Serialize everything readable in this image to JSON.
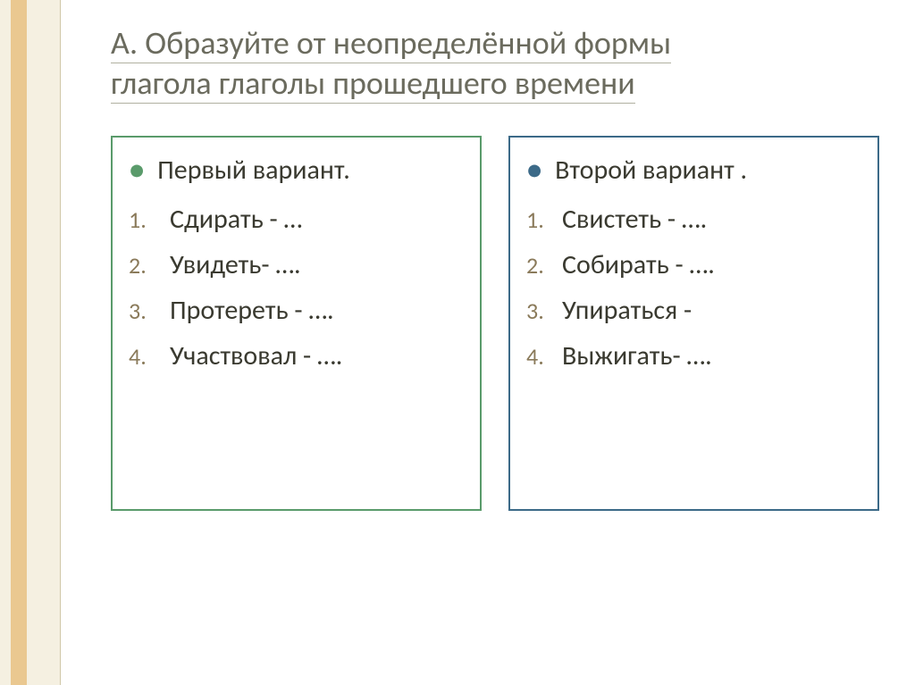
{
  "title": {
    "accent": "А.",
    "line1": "Образуйте от неопределённой формы",
    "line2": "глагола глаголы прошедшего времени"
  },
  "leftCard": {
    "heading": "Первый вариант.",
    "items": [
      "Сдирать -  …",
      "Увидеть- ….",
      "Протереть - ….",
      "Участвовал - …."
    ],
    "borderColor": "#5a9b6b",
    "bulletColor": "#5a9b6b"
  },
  "rightCard": {
    "heading": "Второй вариант .",
    "items": [
      "Свистеть - ….",
      "Собирать - ….",
      "Упираться -",
      "Выжигать- …."
    ],
    "borderColor": "#3c6a88",
    "bulletColor": "#3c6a88"
  },
  "style": {
    "background": "#ffffff",
    "bandColor": "#f5f0e1",
    "bandAccent": "#e0a040",
    "titleColor": "#6b6b5e",
    "textColor": "#3a3a30",
    "numberColor": "#8a7a5a",
    "titleFontSize": 36,
    "bodyFontSize": 30
  }
}
